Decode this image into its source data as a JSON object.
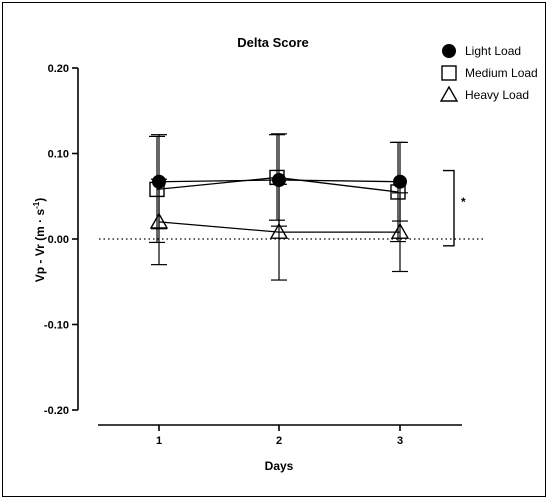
{
  "chart_data": {
    "type": "line",
    "title": "Delta Score",
    "xlabel": "Days",
    "ylabel_main": "Vp - Vr (m · s",
    "ylabel_sup": "-1",
    "ylabel_close": ")",
    "x": [
      1,
      2,
      3
    ],
    "x_tick_labels": [
      "1",
      "2",
      "3"
    ],
    "ylim": [
      -0.2,
      0.2
    ],
    "y_ticks": [
      -0.2,
      -0.1,
      0.0,
      0.1,
      0.2
    ],
    "y_tick_labels": [
      "-0.20",
      "-0.10",
      "0.00",
      "0.10",
      "0.20"
    ],
    "reference_line": {
      "y": 0,
      "style": "dotted"
    },
    "legend_position": "top-right",
    "series": [
      {
        "name": "Light Load",
        "marker": "filled-circle",
        "values": [
          0.067,
          0.069,
          0.067
        ],
        "error": [
          0.055,
          0.054,
          0.046
        ]
      },
      {
        "name": "Medium Load",
        "marker": "open-square",
        "values": [
          0.058,
          0.072,
          0.055
        ],
        "error": [
          0.062,
          0.05,
          0.058
        ]
      },
      {
        "name": "Heavy Load",
        "marker": "open-triangle",
        "values": [
          0.02,
          0.008,
          0.008
        ],
        "error": [
          0.05,
          0.056,
          0.046
        ]
      }
    ],
    "annotation": {
      "text": "*",
      "bracket_y": [
        0.08,
        -0.008
      ]
    }
  }
}
